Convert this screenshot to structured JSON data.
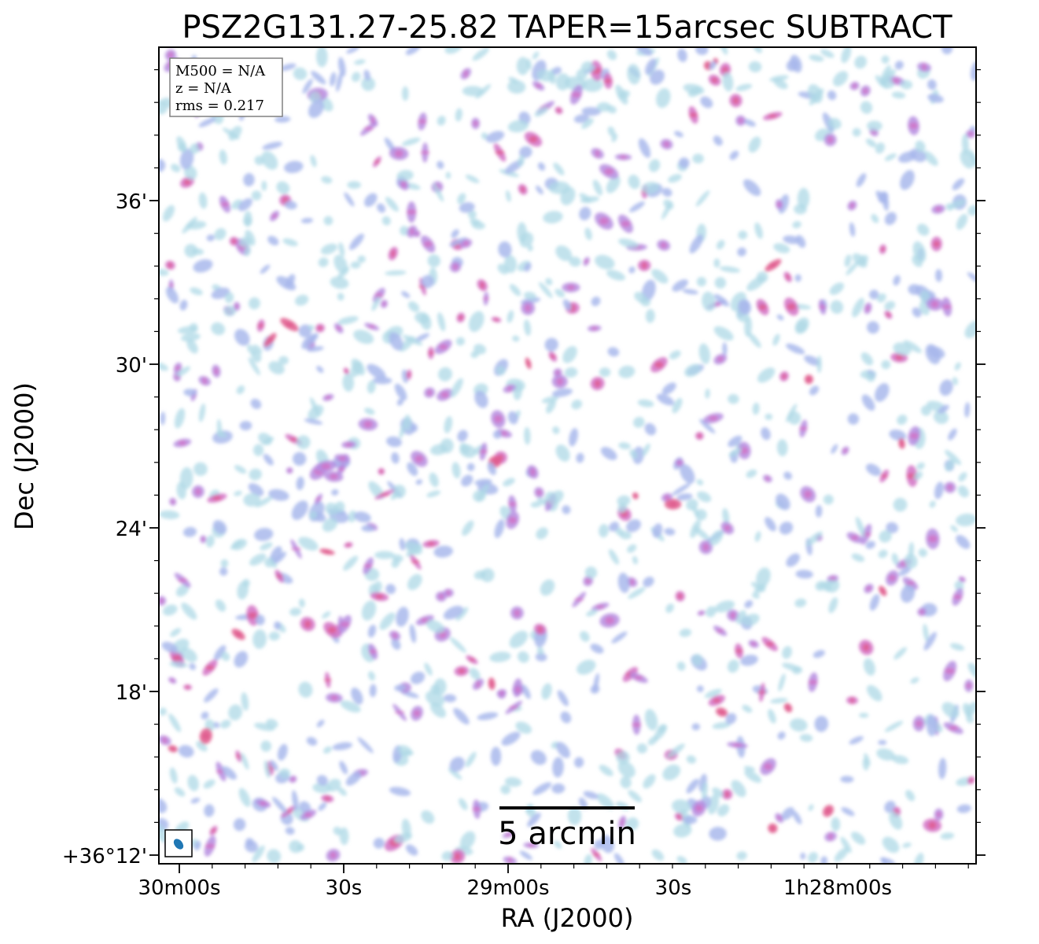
{
  "chart_data": {
    "type": "heatmap",
    "title": "PSZ2G131.27-25.82 TAPER=15arcsec SUBTRACT",
    "xlabel": "RA (J2000)",
    "ylabel": "Dec (J2000)",
    "x_tick_labels": [
      "30m00s",
      "30s",
      "29m00s",
      "30s",
      "1h28m00s"
    ],
    "y_tick_labels": [
      "36'",
      "30'",
      "24'",
      "18'",
      "+36°12'"
    ],
    "info_box": [
      "M500 = N/A",
      "z = N/A",
      "rms = 0.217"
    ],
    "scalebar": "5 arcmin",
    "beam": "15 arcsec",
    "colormap": [
      "#add8e6",
      "#a9b8ec",
      "#b58ce0",
      "#d270c4",
      "#e05a8c"
    ],
    "grid": false,
    "legend": "none"
  }
}
